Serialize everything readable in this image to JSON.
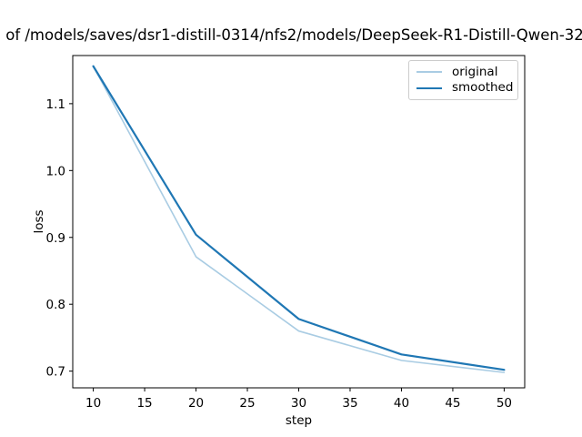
{
  "title": "of /models/saves/dsr1-distill-0314/nfs2/models/DeepSeek-R1-Distill-Qwen-32",
  "colors": {
    "background": "#ffffff",
    "spine": "#000000",
    "original_line": "#a9cce3",
    "smoothed_line": "#1f77b4",
    "legend_border": "#cccccc"
  },
  "legend": {
    "position": "upper right",
    "items": [
      {
        "label": "original",
        "color": "#a9cce3"
      },
      {
        "label": "smoothed",
        "color": "#1f77b4"
      }
    ]
  },
  "chart_data": {
    "type": "line",
    "title": "of /models/saves/dsr1-distill-0314/nfs2/models/DeepSeek-R1-Distill-Qwen-32",
    "xlabel": "step",
    "ylabel": "loss",
    "x": [
      10,
      20,
      30,
      40,
      50
    ],
    "series": [
      {
        "name": "original",
        "values": [
          1.156,
          0.871,
          0.76,
          0.716,
          0.698
        ],
        "color": "#a9cce3",
        "linewidth": 1.6
      },
      {
        "name": "smoothed",
        "values": [
          1.156,
          0.904,
          0.778,
          0.725,
          0.702
        ],
        "color": "#1f77b4",
        "linewidth": 2.2
      }
    ],
    "xticks": [
      10,
      15,
      20,
      25,
      30,
      35,
      40,
      45,
      50
    ],
    "yticks": [
      0.7,
      0.8,
      0.9,
      1.0,
      1.1
    ],
    "xlim": [
      8,
      52
    ],
    "ylim": [
      0.675,
      1.172
    ],
    "grid": false,
    "legend_position": "upper right"
  }
}
